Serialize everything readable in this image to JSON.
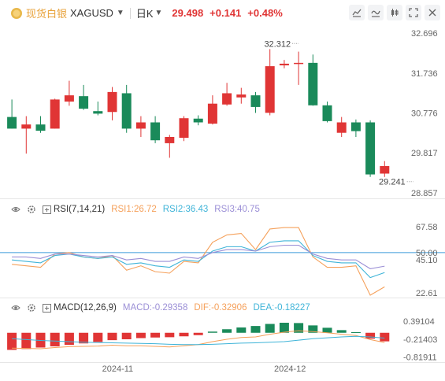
{
  "header": {
    "symbol_cn": "现货白银",
    "symbol": "XAGUSD",
    "period": "日K",
    "last": "29.498",
    "change": "+0.141",
    "change_pct": "+0.48%"
  },
  "colors": {
    "up": "#e03535",
    "down": "#1a8a5a",
    "rsi1": "#f5a05a",
    "rsi2": "#3fb4d8",
    "rsi3": "#9b8fd6",
    "ref_line": "#3b9ad9"
  },
  "icons": [
    "compare-icon",
    "indicator-icon",
    "style-icon",
    "fullscreen-icon",
    "close-icon"
  ],
  "chart_data": [
    {
      "type": "candlestick",
      "y_ticks": [
        "32.696",
        "31.736",
        "30.776",
        "29.817",
        "28.857"
      ],
      "ylim": [
        28.857,
        32.696
      ],
      "annotations": [
        {
          "label": "32.312",
          "x": 20,
          "y": 32.312
        },
        {
          "label": "29.241",
          "x": 28,
          "y": 29.241
        }
      ],
      "x_labels": [
        {
          "label": "2024-11",
          "x": 7.5
        },
        {
          "label": "2024-12",
          "x": 19.5
        }
      ],
      "candles": [
        {
          "o": 30.68,
          "h": 31.1,
          "l": 30.4,
          "c": 30.4
        },
        {
          "o": 30.4,
          "h": 30.7,
          "l": 29.8,
          "c": 30.5
        },
        {
          "o": 30.5,
          "h": 30.7,
          "l": 30.3,
          "c": 30.35
        },
        {
          "o": 30.4,
          "h": 31.12,
          "l": 30.4,
          "c": 31.1
        },
        {
          "o": 31.05,
          "h": 31.55,
          "l": 30.95,
          "c": 31.2
        },
        {
          "o": 31.18,
          "h": 31.45,
          "l": 30.85,
          "c": 30.88
        },
        {
          "o": 30.82,
          "h": 31.05,
          "l": 30.72,
          "c": 30.76
        },
        {
          "o": 30.8,
          "h": 31.4,
          "l": 30.6,
          "c": 31.28
        },
        {
          "o": 31.25,
          "h": 31.45,
          "l": 30.3,
          "c": 30.4
        },
        {
          "o": 30.4,
          "h": 30.7,
          "l": 30.2,
          "c": 30.55
        },
        {
          "o": 30.55,
          "h": 30.7,
          "l": 30.05,
          "c": 30.12
        },
        {
          "o": 30.05,
          "h": 30.25,
          "l": 29.7,
          "c": 30.2
        },
        {
          "o": 30.18,
          "h": 30.7,
          "l": 30.1,
          "c": 30.65
        },
        {
          "o": 30.64,
          "h": 30.72,
          "l": 30.48,
          "c": 30.55
        },
        {
          "o": 30.52,
          "h": 31.2,
          "l": 30.5,
          "c": 31.0
        },
        {
          "o": 30.98,
          "h": 31.5,
          "l": 30.95,
          "c": 31.25
        },
        {
          "o": 31.15,
          "h": 31.38,
          "l": 31.0,
          "c": 31.22
        },
        {
          "o": 31.2,
          "h": 31.28,
          "l": 30.78,
          "c": 30.92
        },
        {
          "o": 30.78,
          "h": 32.31,
          "l": 30.72,
          "c": 31.9
        },
        {
          "o": 31.92,
          "h": 32.05,
          "l": 31.85,
          "c": 31.96
        },
        {
          "o": 31.98,
          "h": 32.25,
          "l": 31.45,
          "c": 31.98
        },
        {
          "o": 31.98,
          "h": 32.18,
          "l": 30.95,
          "c": 30.96
        },
        {
          "o": 30.96,
          "h": 31.05,
          "l": 30.55,
          "c": 30.58
        },
        {
          "o": 30.3,
          "h": 30.68,
          "l": 30.2,
          "c": 30.55
        },
        {
          "o": 30.55,
          "h": 30.62,
          "l": 30.2,
          "c": 30.34
        },
        {
          "o": 30.55,
          "h": 30.6,
          "l": 29.24,
          "c": 29.3
        },
        {
          "o": 29.32,
          "h": 29.62,
          "l": 29.24,
          "c": 29.5
        }
      ]
    },
    {
      "type": "line",
      "title": "RSI(7,14,21)",
      "y_ticks": [
        "67.58",
        "50.00",
        "45.10",
        "22.61"
      ],
      "ylim": [
        22.61,
        67.58
      ],
      "reference_line": 50,
      "series": [
        {
          "name": "RSI1:26.72",
          "values": [
            42,
            41,
            40,
            49,
            50,
            47,
            46,
            48,
            38,
            41,
            37,
            36,
            44,
            43,
            57,
            62,
            63,
            52,
            66,
            67,
            67,
            47,
            40,
            40,
            41,
            21,
            26.7
          ]
        },
        {
          "name": "RSI2:36.43",
          "values": [
            45,
            44,
            43,
            48,
            49,
            47,
            46,
            47,
            42,
            43,
            41,
            40,
            45,
            44,
            51,
            54,
            54,
            51,
            57,
            58,
            58,
            48,
            44,
            43,
            43,
            33,
            36.4
          ]
        },
        {
          "name": "RSI3:40.75",
          "values": [
            47,
            47,
            46,
            49,
            49,
            48,
            47,
            48,
            45,
            46,
            44,
            44,
            47,
            46,
            50,
            52,
            52,
            51,
            54,
            55,
            55,
            49,
            46,
            45,
            45,
            39,
            40.75
          ]
        }
      ]
    },
    {
      "type": "bar",
      "title": "MACD(12,26,9)",
      "y_ticks": [
        "0.39104",
        "-0.21403",
        "-0.81911"
      ],
      "ylim": [
        -0.94,
        0.5
      ],
      "series": [
        {
          "name": "MACD:-0.29358",
          "values": [
            -0.58,
            -0.55,
            -0.5,
            -0.46,
            -0.41,
            -0.36,
            -0.31,
            -0.25,
            -0.22,
            -0.18,
            -0.16,
            -0.15,
            -0.12,
            -0.08,
            0.04,
            0.12,
            0.18,
            0.23,
            0.3,
            0.34,
            0.33,
            0.25,
            0.17,
            0.09,
            0.02,
            -0.2,
            -0.29
          ]
        },
        {
          "name": "DIF:-0.32906",
          "values": [
            -0.52,
            -0.53,
            -0.54,
            -0.5,
            -0.47,
            -0.46,
            -0.45,
            -0.42,
            -0.44,
            -0.44,
            -0.46,
            -0.48,
            -0.44,
            -0.4,
            -0.3,
            -0.22,
            -0.16,
            -0.14,
            -0.05,
            0.02,
            0.07,
            0.04,
            0.0,
            -0.05,
            -0.09,
            -0.23,
            -0.33
          ]
        },
        {
          "name": "DEA:-0.18227",
          "values": [
            -0.2,
            -0.23,
            -0.26,
            -0.28,
            -0.3,
            -0.32,
            -0.33,
            -0.34,
            -0.35,
            -0.36,
            -0.37,
            -0.39,
            -0.4,
            -0.4,
            -0.39,
            -0.37,
            -0.35,
            -0.34,
            -0.32,
            -0.3,
            -0.25,
            -0.2,
            -0.17,
            -0.14,
            -0.12,
            -0.14,
            -0.18
          ]
        }
      ]
    }
  ]
}
